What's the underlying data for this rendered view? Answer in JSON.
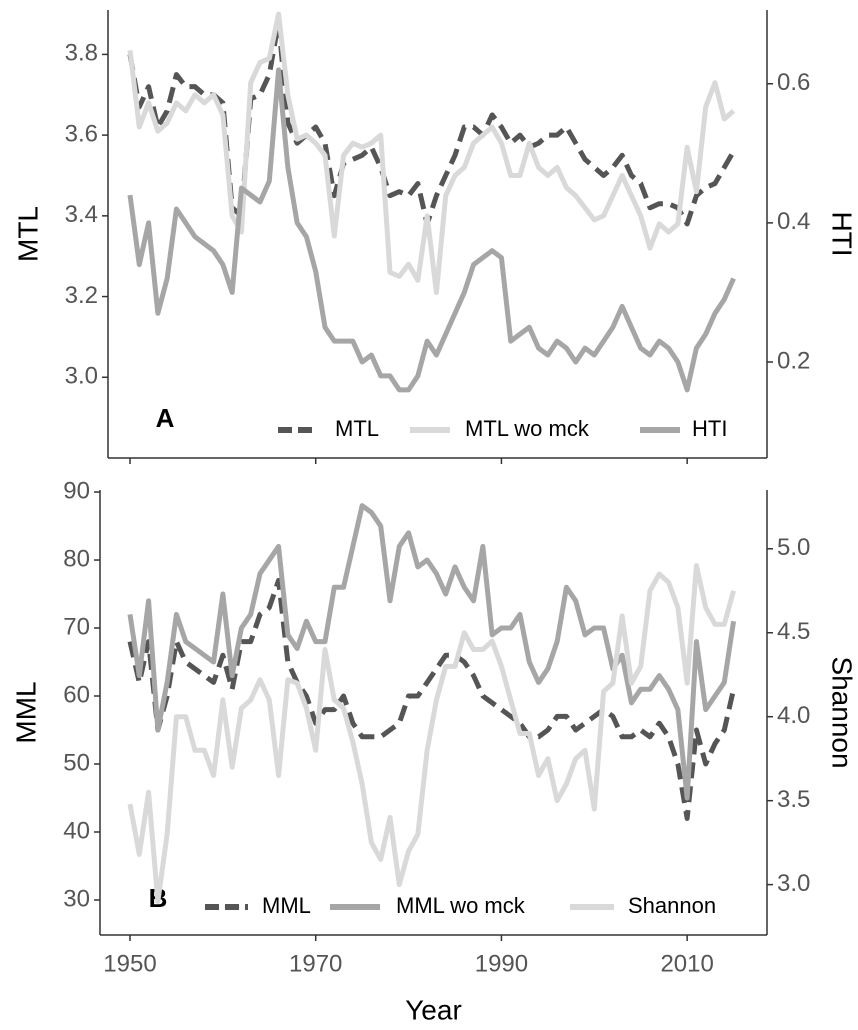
{
  "chart_data": [
    {
      "type": "line",
      "panel_label": "A",
      "y_label": "MTL",
      "y2_label": "HTI",
      "x": [
        1950,
        1951,
        1952,
        1953,
        1954,
        1955,
        1956,
        1957,
        1958,
        1959,
        1960,
        1961,
        1962,
        1963,
        1964,
        1965,
        1966,
        1967,
        1968,
        1969,
        1970,
        1971,
        1972,
        1973,
        1974,
        1975,
        1976,
        1977,
        1978,
        1979,
        1980,
        1981,
        1982,
        1983,
        1984,
        1985,
        1986,
        1987,
        1988,
        1989,
        1990,
        1991,
        1992,
        1993,
        1994,
        1995,
        1996,
        1997,
        1998,
        1999,
        2000,
        2001,
        2002,
        2003,
        2004,
        2005,
        2006,
        2007,
        2008,
        2009,
        2010,
        2011,
        2012,
        2013,
        2014,
        2015
      ],
      "xlim": [
        1947.63,
        2018.6
      ],
      "xticks": [
        1950,
        1970,
        1990,
        2010
      ],
      "ylim": [
        2.8,
        3.91
      ],
      "yticks": [
        {
          "value": 3.0,
          "label": "3.0"
        },
        3.2,
        3.4,
        3.6,
        3.8
      ],
      "y2lim": [
        0.062,
        0.706
      ],
      "y2ticks": [
        0.2,
        0.4,
        0.6
      ],
      "legend_position": "bottom-right",
      "series": [
        {
          "name": "MTL",
          "color": "#555555",
          "style": "dashed",
          "axis": "y",
          "values": [
            3.8,
            3.67,
            3.72,
            3.62,
            3.66,
            3.75,
            3.72,
            3.72,
            3.7,
            3.7,
            3.68,
            3.42,
            3.4,
            3.69,
            3.7,
            3.75,
            3.88,
            3.63,
            3.58,
            3.6,
            3.62,
            3.58,
            3.45,
            3.53,
            3.54,
            3.55,
            3.57,
            3.52,
            3.45,
            3.46,
            3.45,
            3.48,
            3.38,
            3.45,
            3.5,
            3.55,
            3.62,
            3.62,
            3.6,
            3.65,
            3.62,
            3.58,
            3.6,
            3.57,
            3.58,
            3.6,
            3.6,
            3.62,
            3.58,
            3.54,
            3.52,
            3.5,
            3.52,
            3.55,
            3.5,
            3.48,
            3.42,
            3.43,
            3.43,
            3.42,
            3.38,
            3.45,
            3.47,
            3.48,
            3.52,
            3.56
          ]
        },
        {
          "name": "MTL wo mck",
          "color": "#d9d9d9",
          "style": "solid",
          "axis": "y",
          "values": [
            3.81,
            3.62,
            3.68,
            3.61,
            3.63,
            3.68,
            3.66,
            3.7,
            3.68,
            3.7,
            3.65,
            3.4,
            3.36,
            3.73,
            3.78,
            3.79,
            3.9,
            3.7,
            3.59,
            3.6,
            3.58,
            3.55,
            3.35,
            3.55,
            3.58,
            3.57,
            3.58,
            3.6,
            3.26,
            3.25,
            3.28,
            3.24,
            3.4,
            3.21,
            3.45,
            3.5,
            3.52,
            3.58,
            3.6,
            3.62,
            3.58,
            3.5,
            3.5,
            3.58,
            3.52,
            3.5,
            3.52,
            3.47,
            3.45,
            3.42,
            3.39,
            3.4,
            3.45,
            3.5,
            3.45,
            3.4,
            3.32,
            3.38,
            3.36,
            3.38,
            3.57,
            3.46,
            3.67,
            3.73,
            3.64,
            3.66
          ]
        },
        {
          "name": "HTI",
          "color": "#a6a6a6",
          "style": "solid",
          "axis": "y2",
          "values": [
            0.44,
            0.34,
            0.4,
            0.27,
            0.32,
            0.42,
            0.4,
            0.38,
            0.37,
            0.36,
            0.34,
            0.3,
            0.45,
            0.44,
            0.43,
            0.46,
            0.62,
            0.48,
            0.4,
            0.38,
            0.33,
            0.25,
            0.23,
            0.23,
            0.23,
            0.2,
            0.21,
            0.18,
            0.18,
            0.16,
            0.16,
            0.18,
            0.23,
            0.21,
            0.24,
            0.27,
            0.3,
            0.34,
            0.35,
            0.36,
            0.35,
            0.23,
            0.24,
            0.25,
            0.22,
            0.21,
            0.23,
            0.22,
            0.2,
            0.22,
            0.21,
            0.23,
            0.25,
            0.28,
            0.25,
            0.22,
            0.21,
            0.23,
            0.22,
            0.2,
            0.16,
            0.22,
            0.24,
            0.27,
            0.29,
            0.32
          ]
        }
      ]
    },
    {
      "type": "line",
      "panel_label": "B",
      "x_label": "Year",
      "y_label": "MML",
      "y2_label": "Shannon",
      "x": [
        1950,
        1951,
        1952,
        1953,
        1954,
        1955,
        1956,
        1957,
        1958,
        1959,
        1960,
        1961,
        1962,
        1963,
        1964,
        1965,
        1966,
        1967,
        1968,
        1969,
        1970,
        1971,
        1972,
        1973,
        1974,
        1975,
        1976,
        1977,
        1978,
        1979,
        1980,
        1981,
        1982,
        1983,
        1984,
        1985,
        1986,
        1987,
        1988,
        1989,
        1990,
        1991,
        1992,
        1993,
        1994,
        1995,
        1996,
        1997,
        1998,
        1999,
        2000,
        2001,
        2002,
        2003,
        2004,
        2005,
        2006,
        2007,
        2008,
        2009,
        2010,
        2011,
        2012,
        2013,
        2014,
        2015
      ],
      "xlim": [
        1946.77,
        2018.6
      ],
      "xticks": [
        1950,
        1970,
        1990,
        2010
      ],
      "ylim": [
        24.85,
        90.3
      ],
      "yticks": [
        30,
        40,
        50,
        60,
        70,
        80,
        90
      ],
      "y2lim": [
        2.7,
        5.35
      ],
      "y2ticks": [
        {
          "value": 3.0,
          "label": "3.0"
        },
        3.5,
        {
          "value": 4.0,
          "label": "4.0"
        },
        4.5,
        {
          "value": 5.0,
          "label": "5.0"
        }
      ],
      "legend_position": "bottom",
      "series": [
        {
          "name": "MML",
          "color": "#555555",
          "style": "dashed",
          "axis": "y",
          "values": [
            68,
            62,
            68,
            55,
            60,
            68,
            65,
            64,
            63,
            62,
            66,
            61,
            68,
            68,
            72,
            73,
            77,
            65,
            62,
            60,
            56,
            58,
            58,
            60,
            56,
            54,
            54,
            54,
            55,
            56,
            60,
            60,
            62,
            64,
            66,
            66,
            65,
            63,
            60,
            59,
            58,
            57,
            56,
            54,
            54,
            55,
            57,
            57,
            55,
            56,
            57,
            58,
            57,
            54,
            54,
            55,
            54,
            56,
            54,
            50,
            42,
            55,
            50,
            53,
            55,
            61
          ]
        },
        {
          "name": "MML wo mck",
          "color": "#a6a6a6",
          "style": "solid",
          "axis": "y",
          "values": [
            72,
            63,
            74,
            55,
            62,
            72,
            68,
            67,
            66,
            65,
            75,
            63,
            70,
            72,
            78,
            80,
            82,
            69,
            67,
            71,
            68,
            68,
            76,
            76,
            82,
            88,
            87,
            85,
            74,
            82,
            84,
            79,
            80,
            78,
            75,
            79,
            76,
            74,
            82,
            69,
            70,
            70,
            72,
            65,
            62,
            64,
            68,
            76,
            74,
            69,
            70,
            70,
            64,
            66,
            59,
            61,
            61,
            63,
            61,
            58,
            45,
            68,
            58,
            60,
            62,
            71
          ]
        },
        {
          "name": "Shannon",
          "color": "#d9d9d9",
          "style": "solid",
          "axis": "y2",
          "values": [
            3.48,
            3.18,
            3.55,
            2.9,
            3.3,
            4.0,
            4.0,
            3.8,
            3.8,
            3.65,
            4.1,
            3.7,
            4.05,
            4.1,
            4.22,
            4.1,
            3.65,
            4.22,
            4.2,
            4.05,
            3.8,
            4.4,
            4.1,
            4.05,
            3.85,
            3.6,
            3.25,
            3.15,
            3.4,
            3.0,
            3.2,
            3.3,
            3.8,
            4.1,
            4.3,
            4.3,
            4.5,
            4.4,
            4.4,
            4.45,
            4.3,
            4.1,
            3.9,
            3.9,
            3.65,
            3.75,
            3.5,
            3.6,
            3.75,
            3.8,
            3.45,
            4.15,
            4.2,
            4.6,
            4.2,
            4.3,
            4.75,
            4.85,
            4.8,
            4.65,
            4.2,
            4.9,
            4.65,
            4.55,
            4.55,
            4.75
          ]
        }
      ]
    }
  ]
}
